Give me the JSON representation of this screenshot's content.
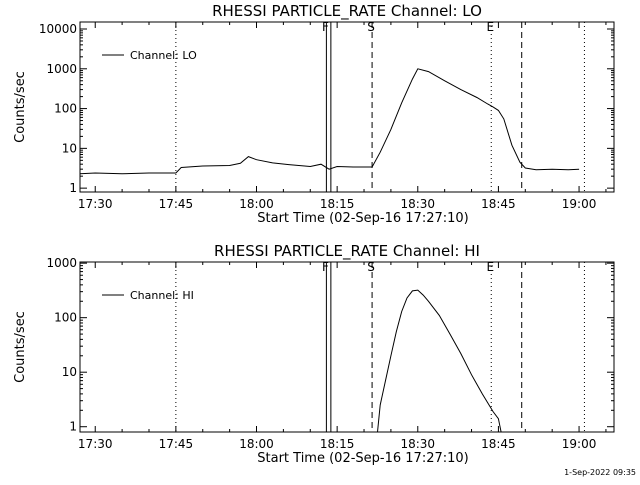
{
  "footer": {
    "timestamp": "1-Sep-2022 09:35"
  },
  "chart_data": [
    {
      "type": "line",
      "title": "RHESSI PARTICLE_RATE Channel: LO",
      "xlabel": "Start Time (02-Sep-16 17:27:10)",
      "ylabel": "Counts/sec",
      "yscale": "log",
      "xlim": [
        "17:27:10",
        "19:06:30"
      ],
      "ylim": [
        0.8,
        15000
      ],
      "x_ticks": [
        "17:30",
        "17:45",
        "18:00",
        "18:15",
        "18:30",
        "18:45",
        "19:00"
      ],
      "y_ticks": [
        "1",
        "10",
        "100",
        "1000",
        "10000"
      ],
      "grid": false,
      "legend": {
        "placement": "top-left",
        "entries": [
          "Channel: LO"
        ]
      },
      "event_markers": [
        {
          "label": "F",
          "time": "18:13:00",
          "style": "solid"
        },
        {
          "label": "",
          "time": "18:13:50",
          "style": "solid"
        },
        {
          "label": "S",
          "time": "18:21:30",
          "style": "dashed"
        },
        {
          "label": "E",
          "time": "18:43:40",
          "style": "dotted"
        },
        {
          "label": "",
          "time": "18:49:20",
          "style": "dashed"
        },
        {
          "label": "",
          "time": "17:45:00",
          "style": "dotted"
        },
        {
          "label": "",
          "time": "19:01:00",
          "style": "dotted"
        }
      ],
      "series": [
        {
          "name": "Channel: LO",
          "x": [
            "17:27:10",
            "17:30:00",
            "17:35:00",
            "17:40:00",
            "17:45:00",
            "17:46:00",
            "17:50:00",
            "17:55:00",
            "17:57:00",
            "17:58:30",
            "18:00:00",
            "18:03:00",
            "18:06:00",
            "18:10:00",
            "18:12:00",
            "18:13:30",
            "18:15:00",
            "18:18:00",
            "18:21:30",
            "18:23:00",
            "18:25:00",
            "18:27:00",
            "18:29:00",
            "18:30:00",
            "18:32:00",
            "18:35:00",
            "18:38:00",
            "18:41:00",
            "18:43:00",
            "18:44:00",
            "18:45:00",
            "18:46:00",
            "18:47:30",
            "18:49:00",
            "18:50:00",
            "18:52:00",
            "18:55:00",
            "18:58:00",
            "19:00:00"
          ],
          "y": [
            2.3,
            2.4,
            2.3,
            2.4,
            2.4,
            3.3,
            3.6,
            3.7,
            4.2,
            6.2,
            5.2,
            4.3,
            3.9,
            3.5,
            4.0,
            3.0,
            3.5,
            3.4,
            3.4,
            8,
            30,
            140,
            550,
            1000,
            850,
            500,
            300,
            190,
            130,
            110,
            90,
            55,
            12,
            4.5,
            3.2,
            2.9,
            3.0,
            2.9,
            3.0
          ]
        }
      ]
    },
    {
      "type": "line",
      "title": "RHESSI PARTICLE_RATE Channel: HI",
      "xlabel": "Start Time (02-Sep-16 17:27:10)",
      "ylabel": "Counts/sec",
      "yscale": "log",
      "xlim": [
        "17:27:10",
        "19:06:30"
      ],
      "ylim": [
        0.8,
        1050
      ],
      "x_ticks": [
        "17:30",
        "17:45",
        "18:00",
        "18:15",
        "18:30",
        "18:45",
        "19:00"
      ],
      "y_ticks": [
        "1",
        "10",
        "100",
        "1000"
      ],
      "grid": false,
      "legend": {
        "placement": "top-left",
        "entries": [
          "Channel: HI"
        ]
      },
      "event_markers": [
        {
          "label": "F",
          "time": "18:13:00",
          "style": "solid"
        },
        {
          "label": "",
          "time": "18:13:50",
          "style": "solid"
        },
        {
          "label": "S",
          "time": "18:21:30",
          "style": "dashed"
        },
        {
          "label": "E",
          "time": "18:43:40",
          "style": "dotted"
        },
        {
          "label": "",
          "time": "18:49:20",
          "style": "dashed"
        },
        {
          "label": "",
          "time": "17:45:00",
          "style": "dotted"
        },
        {
          "label": "",
          "time": "19:01:00",
          "style": "dotted"
        }
      ],
      "series": [
        {
          "name": "Channel: HI",
          "x": [
            "18:22:30",
            "18:23:00",
            "18:24:00",
            "18:25:00",
            "18:26:00",
            "18:27:00",
            "18:28:00",
            "18:29:00",
            "18:30:00",
            "18:31:00",
            "18:32:00",
            "18:34:00",
            "18:36:00",
            "18:38:00",
            "18:40:00",
            "18:42:00",
            "18:44:00",
            "18:45:00",
            "18:45:30"
          ],
          "y": [
            0.8,
            2.5,
            7,
            20,
            55,
            130,
            230,
            310,
            320,
            260,
            200,
            110,
            50,
            22,
            9,
            4,
            1.9,
            1.4,
            0.8
          ]
        }
      ]
    }
  ]
}
